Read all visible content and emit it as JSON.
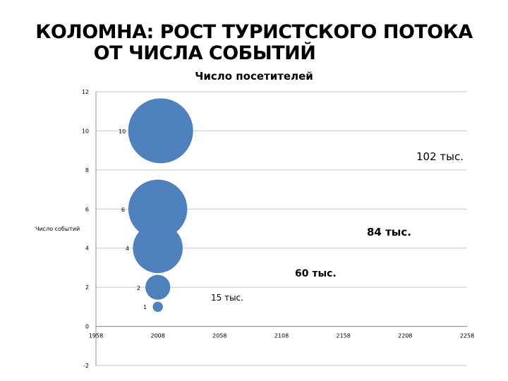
{
  "title": {
    "line1": "КОЛОМНА: РОСТ ТУРИСТСКОГО ПОТОКА",
    "line2": "ОТ  ЧИСЛА  СОБЫТИЙ"
  },
  "chart_data": {
    "type": "bubble",
    "title": "Число посетителей",
    "xlabel": "",
    "ylabel": "Число событий",
    "xlim": [
      1958,
      2258
    ],
    "ylim": [
      -2,
      12
    ],
    "x_ticks": [
      "1958",
      "2008",
      "2058",
      "2108",
      "2158",
      "2208",
      "2258"
    ],
    "y_ticks": [
      "-2",
      "0",
      "2",
      "4",
      "6",
      "8",
      "10",
      "12"
    ],
    "grid": true,
    "points": [
      {
        "x": 2008,
        "y": 10,
        "size": 102,
        "label": "10"
      },
      {
        "x": 2008,
        "y": 6,
        "size": 84,
        "label": "6"
      },
      {
        "x": 2008,
        "y": 4,
        "size": 60,
        "label": "4"
      },
      {
        "x": 2008,
        "y": 2,
        "size": 15,
        "label": "2"
      },
      {
        "x": 2008,
        "y": 1,
        "size": 2.5,
        "label": "1"
      }
    ],
    "annotations": [
      "102 тыс.",
      "84 тыс.",
      "60 тыс.",
      "15 тыс."
    ],
    "bubble_color": "#4F81BD"
  }
}
